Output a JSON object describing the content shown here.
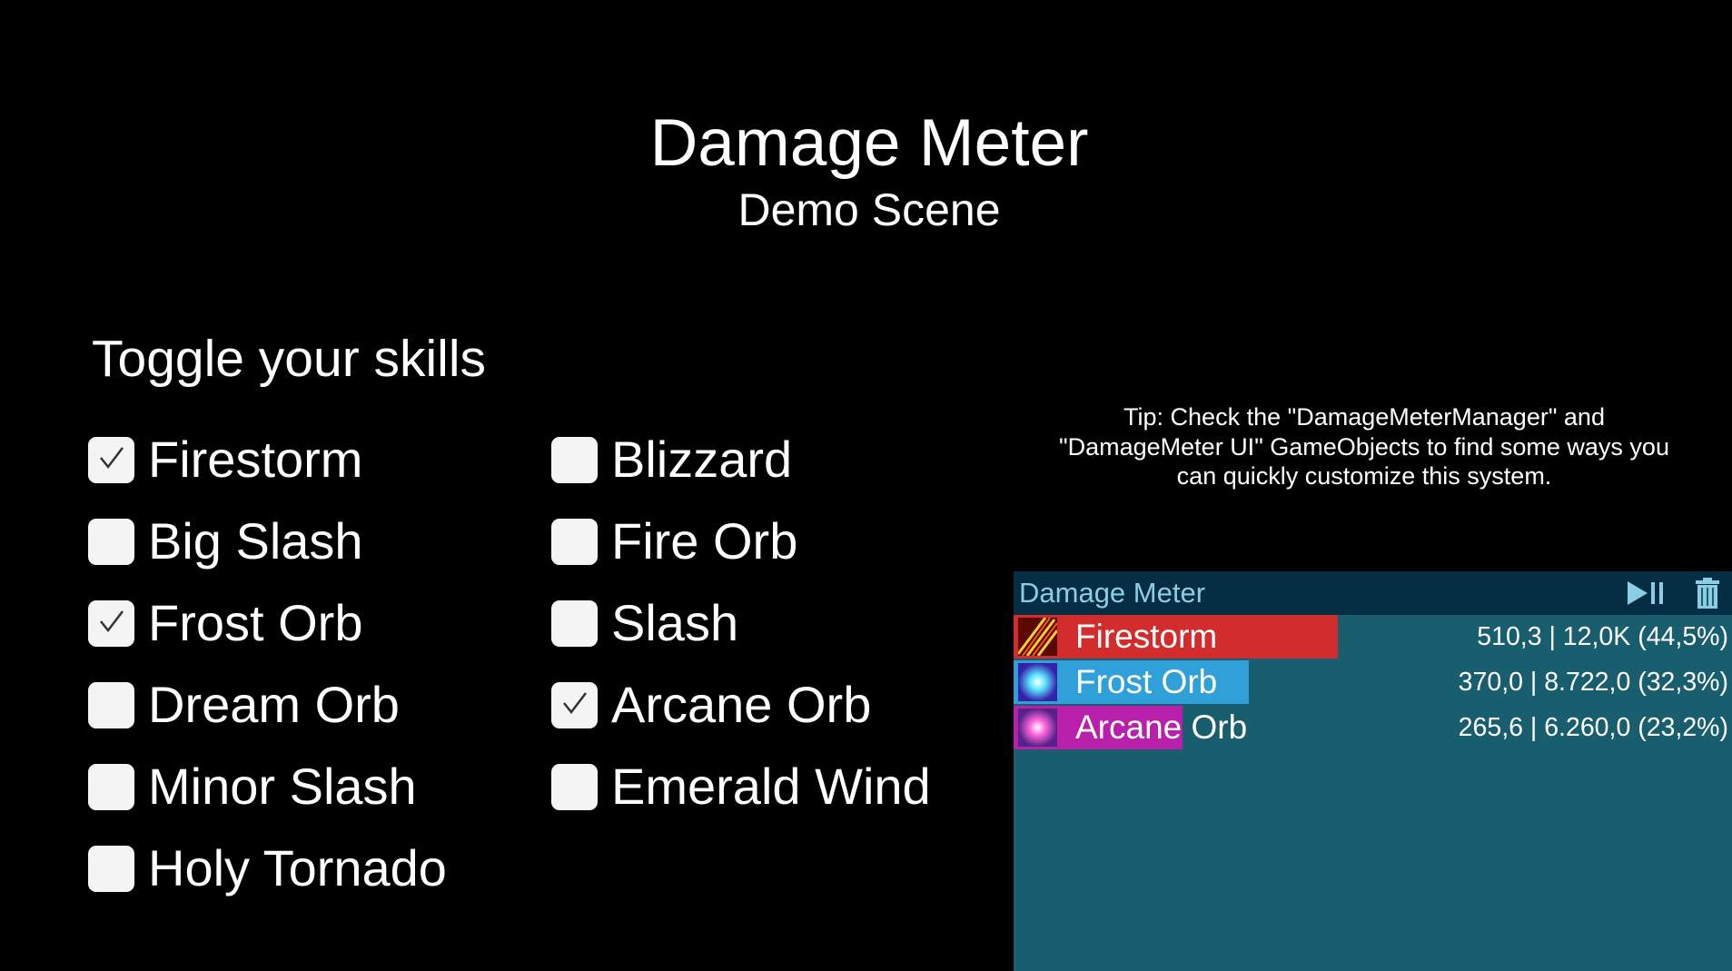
{
  "title": "Damage Meter",
  "subtitle": "Demo Scene",
  "toggle_heading": "Toggle your skills",
  "skills_left": [
    {
      "label": "Firestorm",
      "checked": true
    },
    {
      "label": "Big Slash",
      "checked": false
    },
    {
      "label": "Frost Orb",
      "checked": true
    },
    {
      "label": "Dream Orb",
      "checked": false
    },
    {
      "label": "Minor Slash",
      "checked": false
    },
    {
      "label": "Holy Tornado",
      "checked": false
    }
  ],
  "skills_right": [
    {
      "label": "Blizzard",
      "checked": false
    },
    {
      "label": "Fire Orb",
      "checked": false
    },
    {
      "label": "Slash",
      "checked": false
    },
    {
      "label": "Arcane Orb",
      "checked": true
    },
    {
      "label": "Emerald Wind",
      "checked": false
    }
  ],
  "tip": [
    "Tip: Check the \"DamageMeterManager\" and",
    "\"DamageMeter UI\" GameObjects to find some ways you",
    "can quickly customize this system."
  ],
  "meter": {
    "title": "Damage Meter",
    "play_pause_icon": "play-pause-icon",
    "clear_icon": "trash-icon",
    "rows": [
      {
        "name": "Firestorm",
        "value": "510,3 | 12,0K (44,5%)",
        "bar_fraction": 1.0,
        "color": "#d22c2c",
        "icon": "firestorm-icon"
      },
      {
        "name": "Frost Orb",
        "value": "370,0 | 8.722,0 (32,3%)",
        "bar_fraction": 0.725,
        "color": "#2fa0d8",
        "icon": "frost-orb-icon"
      },
      {
        "name": "Arcane Orb",
        "value": "265,6 | 6.260,0 (23,2%)",
        "bar_fraction": 0.52,
        "color": "#b81fab",
        "icon": "arcane-orb-icon"
      }
    ]
  },
  "colors": {
    "header_bg": "#052e45",
    "panel_bg": "#185e6e",
    "header_text": "#8ccde6"
  }
}
